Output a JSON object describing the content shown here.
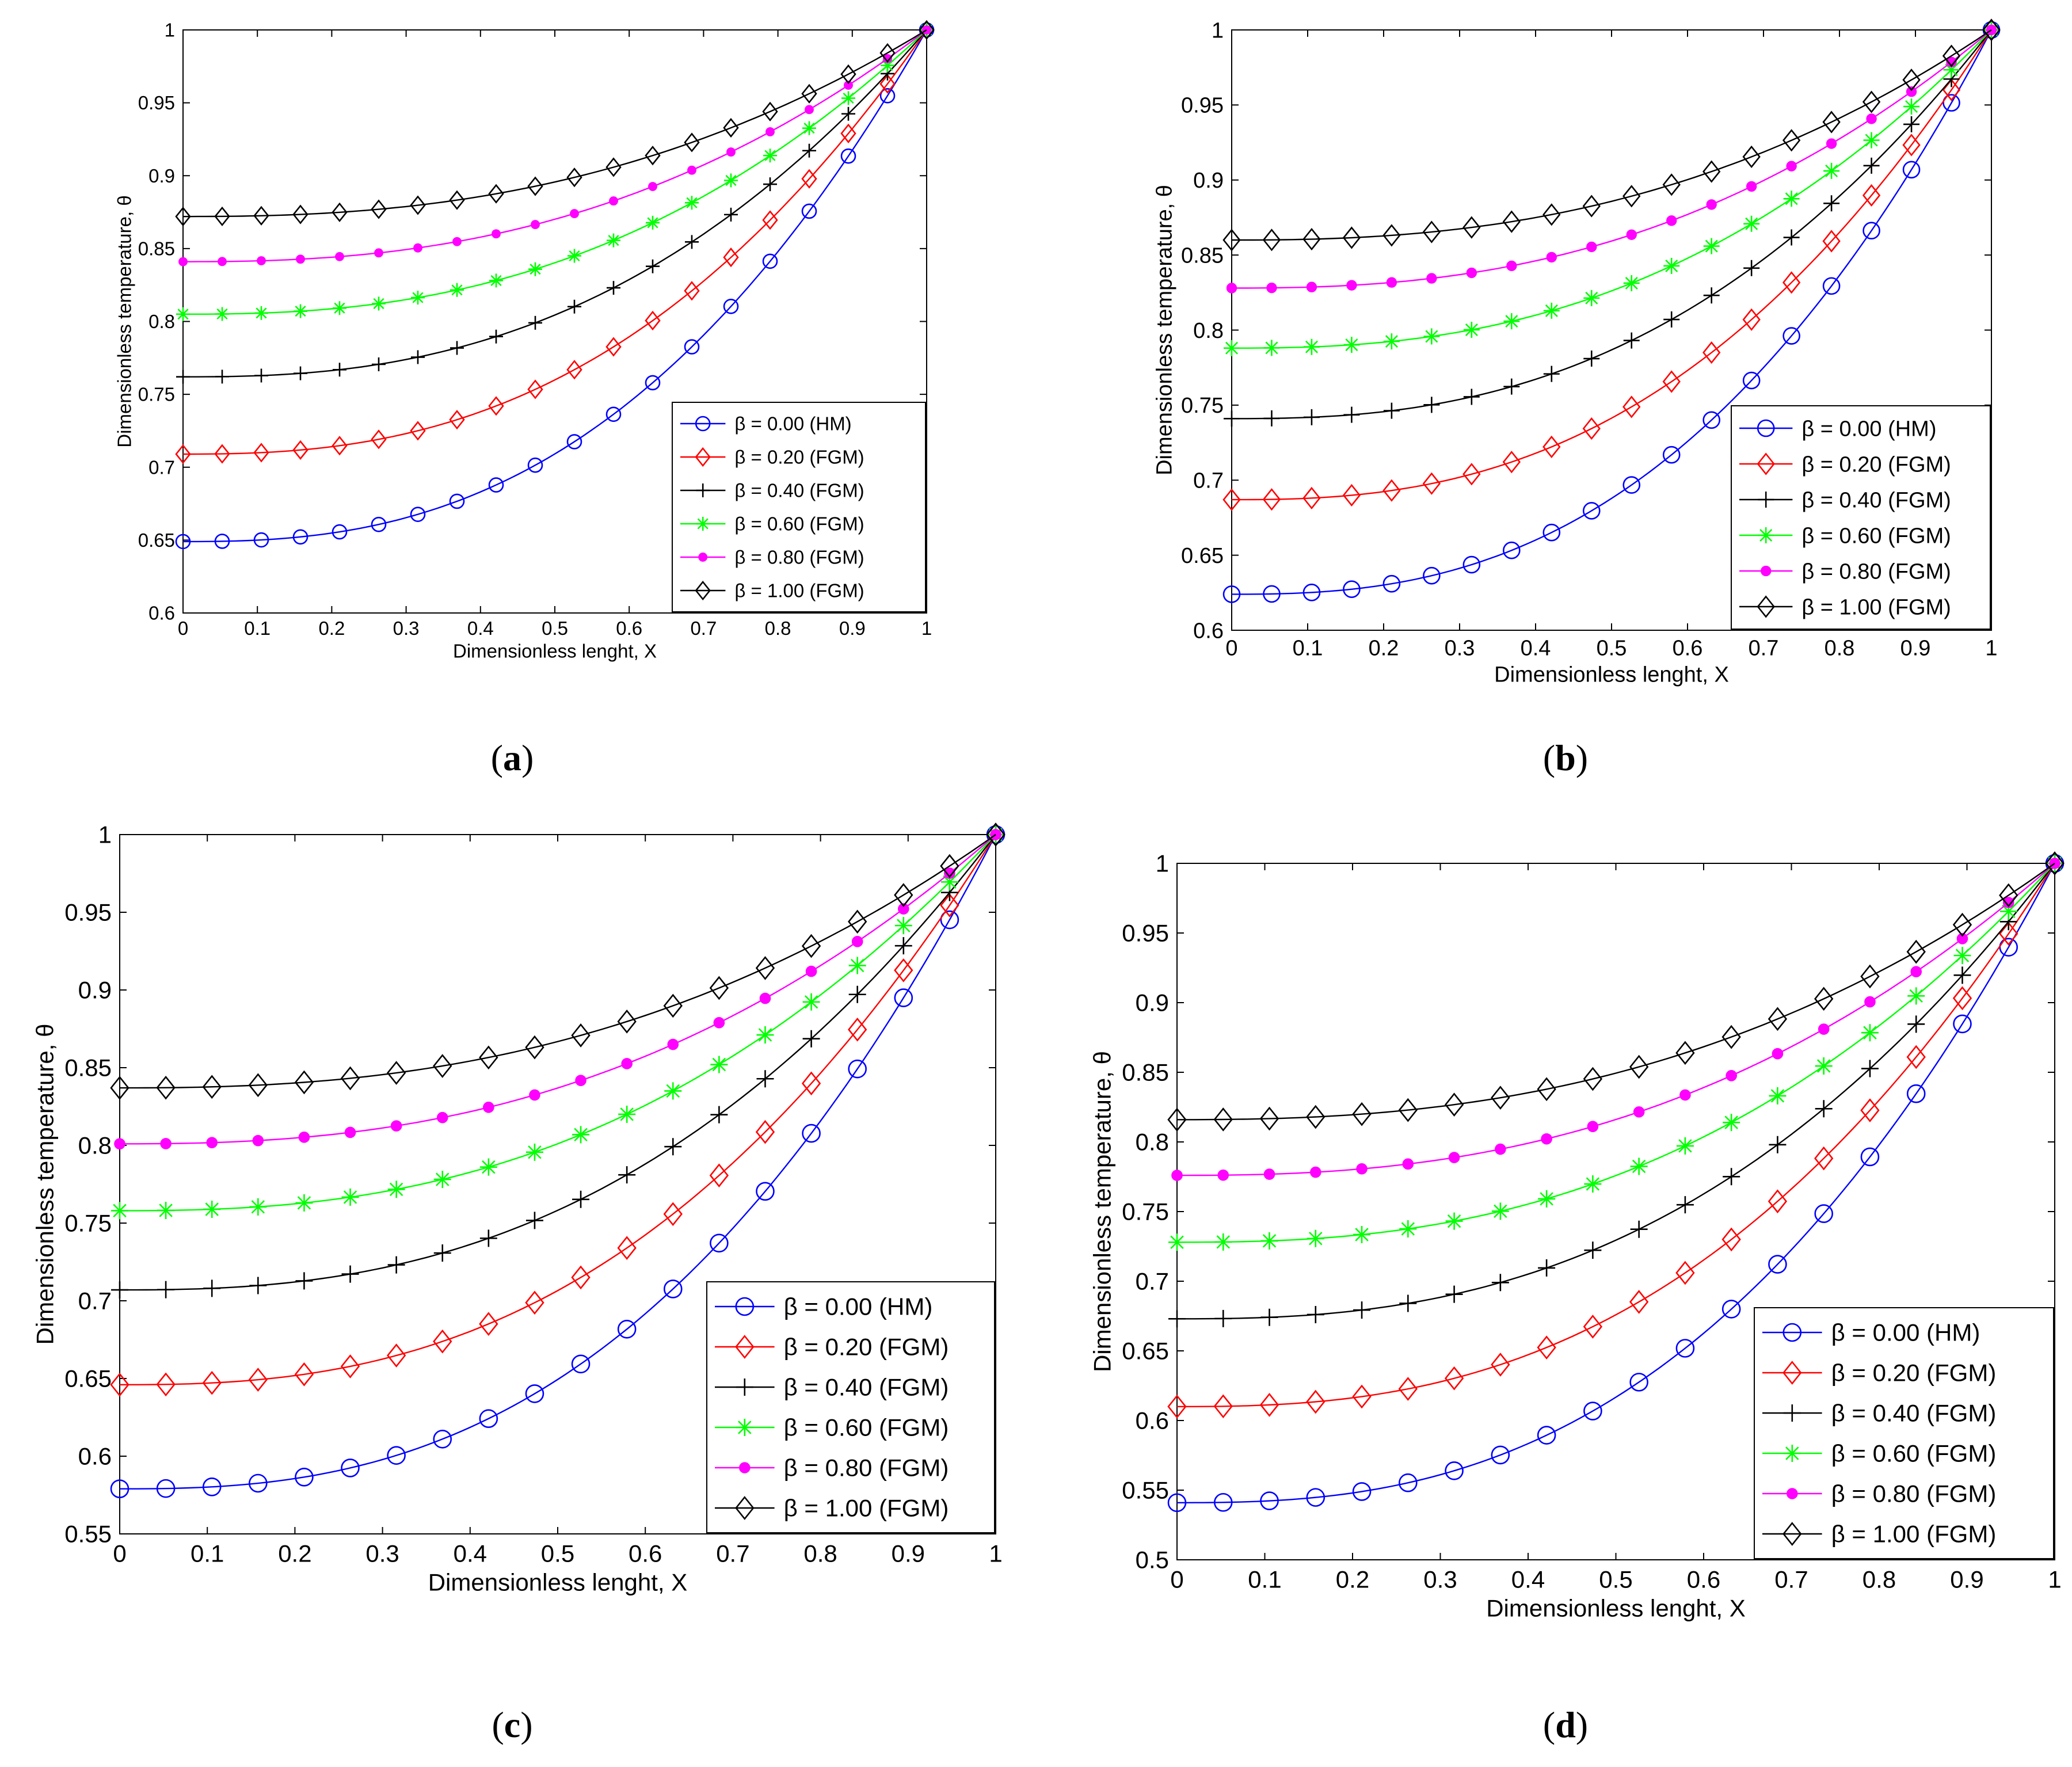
{
  "figure": {
    "caption_labels": [
      "a",
      "b",
      "c",
      "d"
    ]
  },
  "chart_data": [
    {
      "panel": "a",
      "type": "line",
      "xlabel": "Dimensionless lenght, X",
      "ylabel": "Dimensionless temperature, θ",
      "xlim": [
        0,
        1
      ],
      "ylim": [
        0.6,
        1
      ],
      "xticks": [
        "0",
        "0.1",
        "0.2",
        "0.3",
        "0.4",
        "0.5",
        "0.6",
        "0.7",
        "0.8",
        "0.9",
        "1"
      ],
      "yticks": [
        "0.6",
        "0.65",
        "0.7",
        "0.75",
        "0.8",
        "0.85",
        "0.9",
        "0.95",
        "1"
      ],
      "legend_position": "bottom-right",
      "series": [
        {
          "name": "β = 0.00 (HM)",
          "color": "#0000ff",
          "marker": "circle",
          "start": 0.649
        },
        {
          "name": "β = 0.20 (FGM)",
          "color": "#ff0000",
          "marker": "diamond",
          "start": 0.709
        },
        {
          "name": "β = 0.40 (FGM)",
          "color": "#000000",
          "marker": "plus",
          "start": 0.762
        },
        {
          "name": "β = 0.60 (FGM)",
          "color": "#00ff00",
          "marker": "star",
          "start": 0.805
        },
        {
          "name": "β = 0.80 (FGM)",
          "color": "#ff00ff",
          "marker": "dot",
          "start": 0.841
        },
        {
          "name": "β = 1.00 (FGM)",
          "color": "#000000",
          "marker": "diamond",
          "start": 0.872
        }
      ]
    },
    {
      "panel": "b",
      "type": "line",
      "xlabel": "Dimensionless lenght, X",
      "ylabel": "Dimensionless temperature, θ",
      "xlim": [
        0,
        1
      ],
      "ylim": [
        0.6,
        1
      ],
      "xticks": [
        "0",
        "0.1",
        "0.2",
        "0.3",
        "0.4",
        "0.5",
        "0.6",
        "0.7",
        "0.8",
        "0.9",
        "1"
      ],
      "yticks": [
        "0.6",
        "0.65",
        "0.7",
        "0.75",
        "0.8",
        "0.85",
        "0.9",
        "0.95",
        "1"
      ],
      "legend_position": "bottom-right",
      "series": [
        {
          "name": "β = 0.00 (HM)",
          "color": "#0000ff",
          "marker": "circle",
          "start": 0.624
        },
        {
          "name": "β = 0.20 (FGM)",
          "color": "#ff0000",
          "marker": "diamond",
          "start": 0.687
        },
        {
          "name": "β = 0.40 (FGM)",
          "color": "#000000",
          "marker": "plus",
          "start": 0.741
        },
        {
          "name": "β = 0.60 (FGM)",
          "color": "#00ff00",
          "marker": "star",
          "start": 0.788
        },
        {
          "name": "β = 0.80 (FGM)",
          "color": "#ff00ff",
          "marker": "dot",
          "start": 0.828
        },
        {
          "name": "β = 1.00 (FGM)",
          "color": "#000000",
          "marker": "diamond",
          "start": 0.86
        }
      ]
    },
    {
      "panel": "c",
      "type": "line",
      "xlabel": "Dimensionless lenght, X",
      "ylabel": "Dimensionless temperature, θ",
      "xlim": [
        0,
        1
      ],
      "ylim": [
        0.55,
        1
      ],
      "xticks": [
        "0",
        "0.1",
        "0.2",
        "0.3",
        "0.4",
        "0.5",
        "0.6",
        "0.7",
        "0.8",
        "0.9",
        "1"
      ],
      "yticks": [
        "0.55",
        "0.6",
        "0.65",
        "0.7",
        "0.75",
        "0.8",
        "0.85",
        "0.9",
        "0.95",
        "1"
      ],
      "legend_position": "bottom-right",
      "series": [
        {
          "name": "β = 0.00 (HM)",
          "color": "#0000ff",
          "marker": "circle",
          "start": 0.579
        },
        {
          "name": "β = 0.20 (FGM)",
          "color": "#ff0000",
          "marker": "diamond",
          "start": 0.646
        },
        {
          "name": "β = 0.40 (FGM)",
          "color": "#000000",
          "marker": "plus",
          "start": 0.707
        },
        {
          "name": "β = 0.60 (FGM)",
          "color": "#00ff00",
          "marker": "star",
          "start": 0.758
        },
        {
          "name": "β = 0.80 (FGM)",
          "color": "#ff00ff",
          "marker": "dot",
          "start": 0.801
        },
        {
          "name": "β = 1.00 (FGM)",
          "color": "#000000",
          "marker": "diamond",
          "start": 0.837
        }
      ]
    },
    {
      "panel": "d",
      "type": "line",
      "xlabel": "Dimensionless lenght, X",
      "ylabel": "Dimensionless temperature, θ",
      "xlim": [
        0,
        1
      ],
      "ylim": [
        0.5,
        1
      ],
      "xticks": [
        "0",
        "0.1",
        "0.2",
        "0.3",
        "0.4",
        "0.5",
        "0.6",
        "0.7",
        "0.8",
        "0.9",
        "1"
      ],
      "yticks": [
        "0.5",
        "0.55",
        "0.6",
        "0.65",
        "0.7",
        "0.75",
        "0.8",
        "0.85",
        "0.9",
        "0.95",
        "1"
      ],
      "legend_position": "bottom-right",
      "series": [
        {
          "name": "β = 0.00 (HM)",
          "color": "#0000ff",
          "marker": "circle",
          "start": 0.541
        },
        {
          "name": "β = 0.20 (FGM)",
          "color": "#ff0000",
          "marker": "diamond",
          "start": 0.61
        },
        {
          "name": "β = 0.40 (FGM)",
          "color": "#000000",
          "marker": "plus",
          "start": 0.673
        },
        {
          "name": "β = 0.60 (FGM)",
          "color": "#00ff00",
          "marker": "star",
          "start": 0.728
        },
        {
          "name": "β = 0.80 (FGM)",
          "color": "#ff00ff",
          "marker": "dot",
          "start": 0.776
        },
        {
          "name": "β = 1.00 (FGM)",
          "color": "#000000",
          "marker": "diamond",
          "start": 0.816
        }
      ]
    }
  ]
}
